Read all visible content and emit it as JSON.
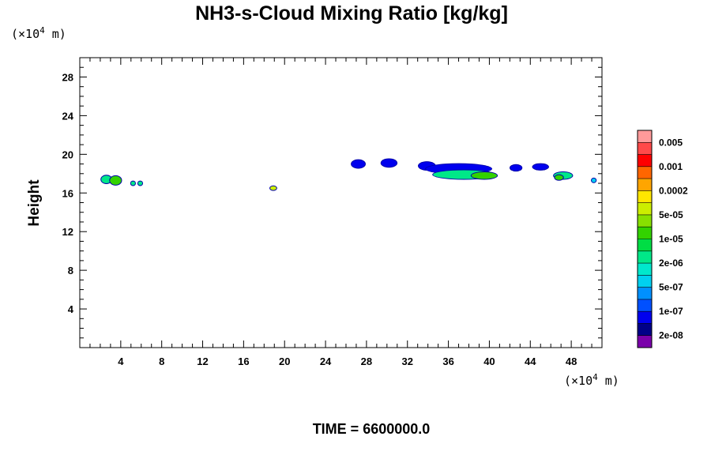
{
  "chart_data": {
    "type": "heatmap",
    "title": "NH3-s-Cloud Mixing Ratio [kg/kg]",
    "ylabel": "Height",
    "x_unit": "(×10⁴ m)",
    "y_unit": "(×10⁴ m)",
    "x_unit_main": "(×10",
    "x_unit_exp": "4",
    "x_unit_end": " m)",
    "y_unit_main": "(×10",
    "y_unit_exp": "4",
    "y_unit_end": " m)",
    "xlim": [
      0,
      51
    ],
    "ylim": [
      0,
      30
    ],
    "xticks": [
      4,
      8,
      12,
      16,
      20,
      24,
      28,
      32,
      36,
      40,
      44,
      48
    ],
    "yticks": [
      4,
      8,
      12,
      16,
      20,
      24,
      28
    ],
    "time_label": "TIME = 6600000.0",
    "colorbar": {
      "levels": [
        "0.005",
        "0.001",
        "0.0002",
        "5e-05",
        "1e-05",
        "2e-06",
        "5e-07",
        "1e-07",
        "2e-08"
      ],
      "colors": [
        "#ff9a9a",
        "#ff4a4a",
        "#ff0000",
        "#ff6600",
        "#ffa500",
        "#ffe600",
        "#ccee00",
        "#88e000",
        "#33d200",
        "#00dd44",
        "#00e888",
        "#00e8cc",
        "#00d0f0",
        "#0090ff",
        "#0050ff",
        "#0000ee",
        "#000088",
        "#7a00aa"
      ]
    },
    "cloud_patches": [
      {
        "x": 2.6,
        "y": 17.4,
        "w": 1.0,
        "h": 0.8,
        "level": "5e-06",
        "color": "#00e888"
      },
      {
        "x": 3.5,
        "y": 17.3,
        "w": 1.1,
        "h": 0.9,
        "level": "1e-05",
        "color": "#33d200"
      },
      {
        "x": 5.2,
        "y": 17.0,
        "w": 0.4,
        "h": 0.4,
        "level": "5e-06",
        "color": "#00e888"
      },
      {
        "x": 5.9,
        "y": 17.0,
        "w": 0.4,
        "h": 0.4,
        "level": "5e-06",
        "color": "#00e888"
      },
      {
        "x": 18.9,
        "y": 16.5,
        "w": 0.6,
        "h": 0.4,
        "level": "5e-05",
        "color": "#ccee00"
      },
      {
        "x": 27.2,
        "y": 19.0,
        "w": 1.3,
        "h": 0.8,
        "level": "2e-08",
        "color": "#0000ee"
      },
      {
        "x": 30.2,
        "y": 19.1,
        "w": 1.5,
        "h": 0.8,
        "level": "2e-08",
        "color": "#0000ee"
      },
      {
        "x": 33.9,
        "y": 18.8,
        "w": 1.6,
        "h": 0.8,
        "level": "2e-08",
        "color": "#0000ee"
      },
      {
        "x": 37.0,
        "y": 18.5,
        "w": 6.4,
        "h": 1.0,
        "level": "1e-07",
        "color": "#0000ee"
      },
      {
        "x": 37.5,
        "y": 17.9,
        "w": 6.0,
        "h": 0.9,
        "level": "5e-06",
        "color": "#00e888"
      },
      {
        "x": 39.5,
        "y": 17.8,
        "w": 2.5,
        "h": 0.7,
        "level": "1e-05",
        "color": "#33d200"
      },
      {
        "x": 42.6,
        "y": 18.6,
        "w": 1.1,
        "h": 0.6,
        "level": "2e-08",
        "color": "#0000ee"
      },
      {
        "x": 45.0,
        "y": 18.7,
        "w": 1.5,
        "h": 0.6,
        "level": "2e-08",
        "color": "#0000ee"
      },
      {
        "x": 47.2,
        "y": 17.8,
        "w": 1.8,
        "h": 0.7,
        "level": "5e-06",
        "color": "#00e888"
      },
      {
        "x": 46.8,
        "y": 17.6,
        "w": 0.8,
        "h": 0.5,
        "level": "1e-05",
        "color": "#33d200"
      },
      {
        "x": 50.2,
        "y": 17.3,
        "w": 0.4,
        "h": 0.4,
        "level": "5e-07",
        "color": "#00d0f0"
      }
    ]
  }
}
